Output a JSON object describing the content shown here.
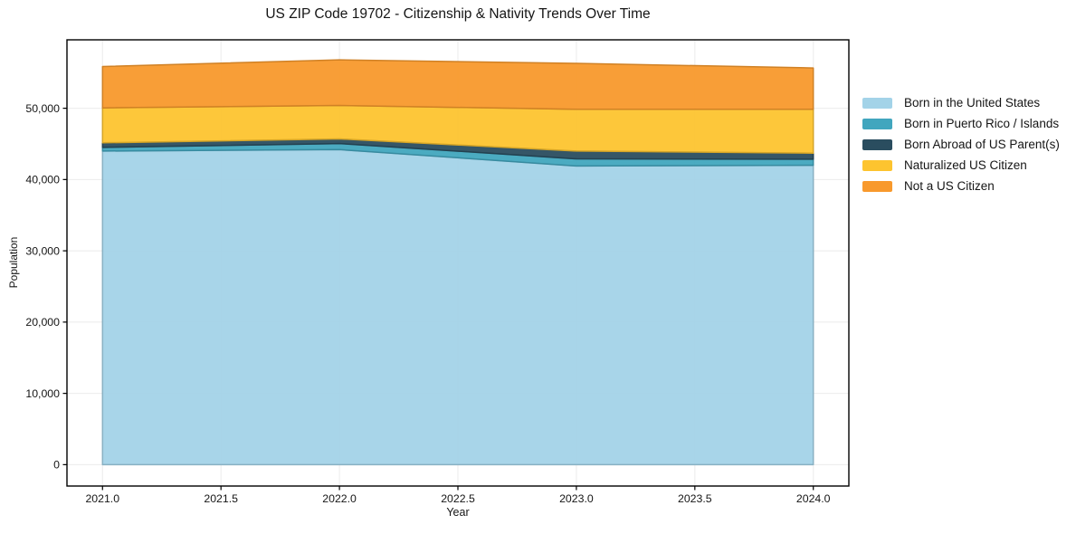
{
  "chart_data": {
    "type": "area",
    "stacked": true,
    "title": "US ZIP Code 19702 - Citizenship & Nativity Trends Over Time",
    "xlabel": "Year",
    "ylabel": "Population",
    "x": [
      2021,
      2022,
      2023,
      2024
    ],
    "series": [
      {
        "name": "Born in the United States",
        "color": "#A3D3E8",
        "values": [
          44000,
          44200,
          41900,
          42000
        ]
      },
      {
        "name": "Born in Puerto Rico / Islands",
        "color": "#41A6BE",
        "values": [
          500,
          850,
          1000,
          850
        ]
      },
      {
        "name": "Born Abroad of US Parent(s)",
        "color": "#2A4D5F",
        "values": [
          650,
          650,
          1100,
          850
        ]
      },
      {
        "name": "Naturalized US Citizen",
        "color": "#FDC42F",
        "values": [
          4900,
          4700,
          5850,
          6150
        ]
      },
      {
        "name": "Not a US Citizen",
        "color": "#F8992C",
        "values": [
          5800,
          6400,
          6450,
          5800
        ]
      }
    ],
    "stacked_totals": [
      55850,
      56800,
      56300,
      55650
    ],
    "xlim": [
      2020.85,
      2024.15
    ],
    "ylim": [
      -3000,
      59600
    ],
    "xticks": {
      "values": [
        2021.0,
        2021.5,
        2022.0,
        2022.5,
        2023.0,
        2023.5,
        2024.0
      ],
      "labels": [
        "2021.0",
        "2021.5",
        "2022.0",
        "2022.5",
        "2023.0",
        "2023.5",
        "2024.0"
      ]
    },
    "yticks": {
      "values": [
        0,
        10000,
        20000,
        30000,
        40000,
        50000
      ],
      "labels": [
        "0",
        "10,000",
        "20,000",
        "30,000",
        "40,000",
        "50,000"
      ]
    },
    "grid": true,
    "grid_color": "#dcdcdc",
    "spine_color": "#000000",
    "legend_position": "right-outside"
  }
}
